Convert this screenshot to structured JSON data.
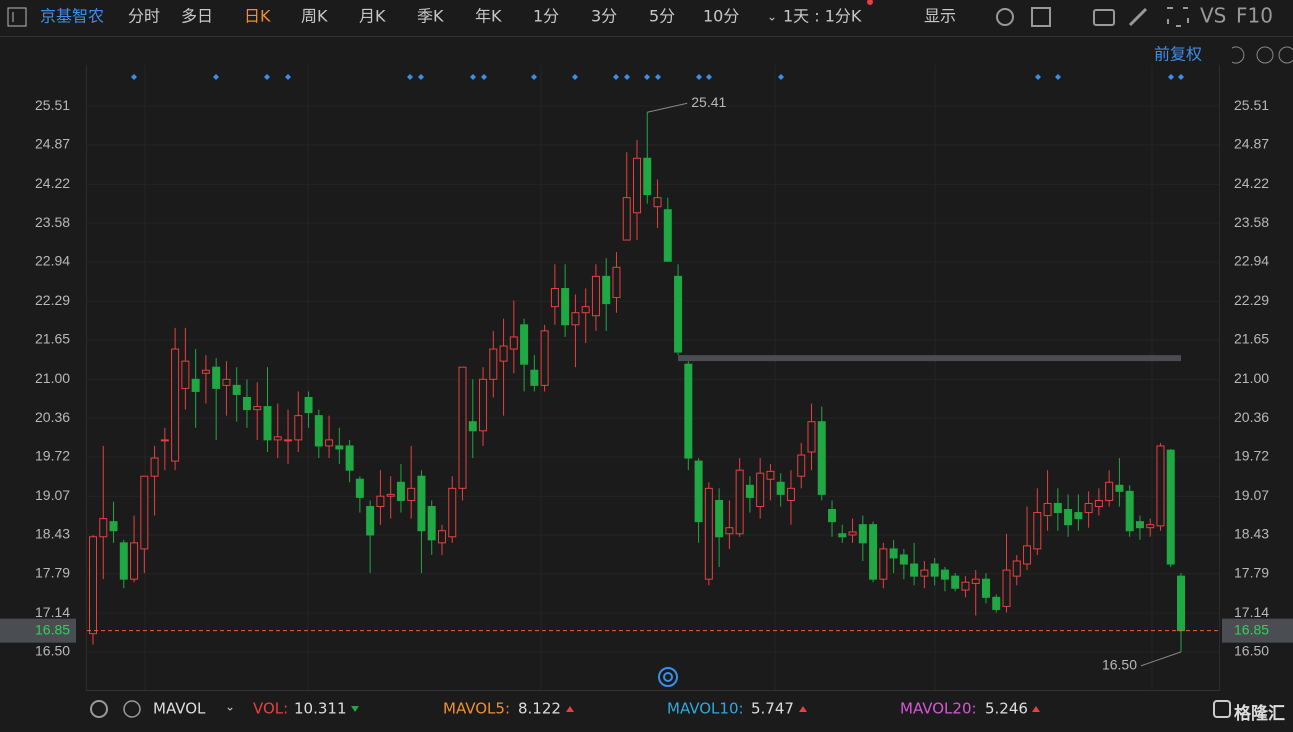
{
  "toolbar": {
    "stock": "京基智农",
    "periods": [
      "分时",
      "多日",
      "日K",
      "周K",
      "月K",
      "季K",
      "年K",
      "1分",
      "3分",
      "5分",
      "10分"
    ],
    "period_select": "1天 : 1分K",
    "display": "显示",
    "vs": "VS",
    "f10": "F10"
  },
  "adjust": "前复权",
  "chart_data": {
    "type": "candlestick",
    "up_color": "#e8403f",
    "down_color": "#1fa843",
    "open": [
      16.8,
      18.4,
      18.65,
      18.3,
      17.7,
      18.2,
      19.4,
      20.0,
      19.65,
      20.85,
      21.0,
      21.1,
      21.2,
      20.9,
      20.9,
      20.7,
      20.5,
      20.55,
      20.0,
      20.0,
      20.0,
      20.7,
      20.4,
      19.9,
      19.9,
      19.9,
      19.35,
      18.9,
      18.9,
      19.07,
      19.3,
      19.0,
      19.4,
      18.9,
      18.3,
      18.4,
      19.2,
      20.3,
      20.15,
      21.0,
      21.3,
      21.5,
      21.9,
      21.15,
      20.9,
      22.2,
      22.5,
      21.9,
      22.1,
      22.05,
      22.7,
      22.35,
      23.3,
      23.75,
      24.65,
      23.85,
      23.8,
      22.7,
      21.25,
      19.65,
      17.7,
      19.0,
      18.45,
      18.45,
      19.25,
      18.9,
      19.35,
      19.3,
      19.0,
      19.4,
      19.8,
      20.3,
      18.85,
      18.45,
      18.43,
      18.6,
      18.6,
      17.7,
      18.2,
      18.1,
      17.95,
      17.75,
      17.95,
      17.85,
      17.75,
      17.52,
      17.63,
      17.7,
      17.4,
      17.25,
      17.75,
      17.95,
      18.2,
      18.75,
      18.95,
      18.85,
      18.8,
      18.8,
      18.9,
      19.0,
      19.25,
      19.15,
      18.65,
      18.55,
      18.58,
      19.83,
      17.75
    ],
    "close": [
      18.4,
      18.7,
      18.5,
      17.7,
      18.3,
      19.4,
      19.7,
      20.0,
      21.5,
      21.3,
      20.8,
      21.15,
      20.85,
      21.0,
      20.75,
      20.5,
      20.55,
      20.0,
      20.05,
      20.0,
      20.4,
      20.45,
      19.9,
      20.0,
      19.85,
      19.5,
      19.05,
      18.43,
      19.07,
      19.1,
      19.0,
      19.2,
      18.5,
      18.35,
      18.5,
      19.2,
      21.2,
      20.15,
      21.0,
      21.5,
      21.55,
      21.7,
      21.25,
      20.9,
      21.8,
      22.5,
      21.9,
      22.1,
      22.2,
      22.7,
      22.25,
      22.85,
      24.0,
      24.65,
      24.05,
      24.0,
      22.95,
      21.45,
      19.7,
      18.65,
      19.2,
      18.4,
      18.55,
      19.5,
      19.05,
      19.45,
      19.48,
      19.1,
      19.2,
      19.75,
      20.3,
      19.1,
      18.65,
      18.4,
      18.48,
      18.3,
      17.7,
      18.2,
      18.05,
      17.95,
      17.75,
      17.85,
      17.75,
      17.7,
      17.55,
      17.65,
      17.7,
      17.4,
      17.2,
      17.85,
      18.0,
      18.25,
      18.8,
      18.95,
      18.8,
      18.6,
      18.7,
      18.95,
      19.0,
      19.3,
      19.15,
      18.5,
      18.55,
      18.6,
      19.9,
      17.95,
      16.85
    ],
    "high": [
      18.43,
      19.9,
      18.98,
      18.35,
      18.75,
      19.4,
      19.9,
      20.2,
      21.85,
      21.85,
      21.5,
      21.4,
      21.35,
      21.3,
      21.2,
      21.0,
      20.95,
      21.2,
      20.6,
      20.5,
      20.8,
      20.8,
      20.5,
      20.4,
      20.2,
      20.0,
      19.4,
      19.0,
      19.5,
      19.4,
      19.6,
      19.9,
      19.5,
      19.0,
      18.6,
      19.4,
      21.2,
      21.0,
      21.2,
      21.8,
      22.0,
      22.3,
      22.0,
      21.4,
      21.9,
      22.9,
      22.9,
      22.4,
      22.5,
      22.9,
      23.0,
      23.1,
      24.75,
      24.95,
      25.41,
      24.3,
      24.0,
      22.9,
      21.3,
      19.7,
      19.3,
      19.2,
      19.0,
      19.7,
      19.4,
      19.7,
      19.6,
      19.45,
      19.5,
      19.95,
      20.6,
      20.55,
      19.0,
      18.6,
      18.7,
      18.75,
      18.65,
      18.3,
      18.35,
      18.2,
      18.3,
      18.0,
      18.05,
      17.9,
      17.8,
      17.75,
      17.85,
      17.8,
      17.45,
      18.45,
      18.1,
      18.9,
      19.2,
      19.5,
      19.2,
      19.1,
      19.1,
      19.15,
      19.2,
      19.5,
      19.7,
      19.25,
      18.75,
      18.7,
      19.95,
      19.85,
      17.8
    ],
    "low": [
      16.62,
      17.7,
      18.3,
      17.55,
      17.65,
      17.8,
      18.75,
      19.5,
      19.5,
      20.5,
      20.2,
      20.6,
      20.0,
      20.4,
      20.3,
      20.2,
      20.0,
      19.8,
      19.7,
      19.6,
      19.8,
      20.2,
      19.7,
      19.7,
      19.6,
      19.3,
      18.8,
      17.8,
      18.6,
      18.7,
      18.8,
      18.7,
      17.8,
      18.1,
      18.1,
      18.3,
      19.0,
      19.7,
      19.9,
      20.7,
      20.4,
      21.1,
      20.8,
      20.8,
      20.8,
      21.9,
      21.7,
      21.2,
      21.6,
      21.8,
      21.8,
      22.1,
      23.3,
      23.3,
      23.9,
      23.5,
      22.95,
      21.4,
      19.5,
      18.3,
      17.6,
      17.9,
      18.2,
      18.4,
      18.8,
      18.7,
      19.0,
      18.9,
      18.6,
      19.2,
      19.5,
      19.0,
      18.4,
      18.3,
      18.3,
      18.0,
      17.65,
      17.55,
      17.8,
      17.7,
      17.6,
      17.55,
      17.6,
      17.5,
      17.5,
      17.4,
      17.1,
      17.3,
      17.15,
      17.15,
      17.6,
      17.85,
      18.1,
      18.5,
      18.5,
      18.4,
      18.5,
      18.55,
      18.75,
      18.9,
      18.9,
      18.4,
      18.35,
      18.4,
      18.5,
      17.9,
      16.5
    ],
    "ylim": [
      15.87,
      26.19
    ],
    "yticks": [
      25.51,
      24.87,
      24.22,
      23.58,
      22.94,
      22.29,
      21.65,
      {
        "value": 21,
        "label": "21.00"
      },
      20.36,
      19.72,
      19.07,
      18.43,
      17.79,
      17.14,
      {
        "value": 16.5,
        "label": "16.50"
      }
    ],
    "last_price": 16.85,
    "level_line": 21.35,
    "max_annotation": {
      "value": 25.41,
      "label": "25.41"
    },
    "min_annotation": {
      "value": 16.5,
      "label": "16.50"
    }
  },
  "indicator": {
    "name": "MAVOL",
    "vol_label": "VOL:",
    "vol": 10.311,
    "ma5_label": "MAVOL5:",
    "ma5": 8.122,
    "ma10_label": "MAVOL10:",
    "ma10": 5.747,
    "ma20_label": "MAVOL20:",
    "ma20": 5.246
  },
  "watermark": "格隆汇"
}
